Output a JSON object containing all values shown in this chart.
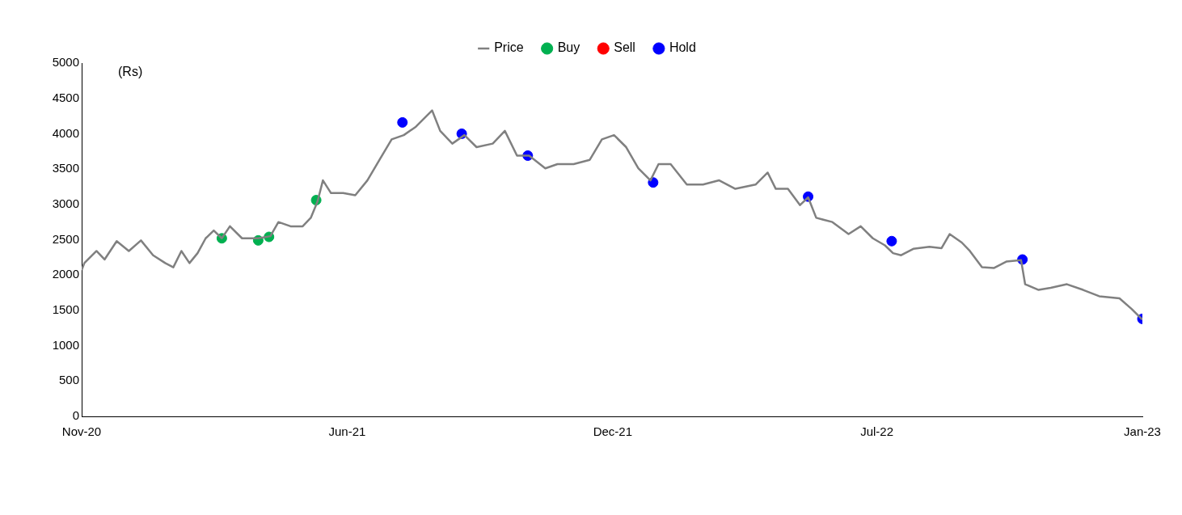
{
  "chart_data": {
    "type": "line",
    "ylabel": "(Rs)",
    "legend": "top",
    "xlim": [
      "2020-11-20",
      "2023-01-16"
    ],
    "xticks": [
      {
        "value": "2020-11-20",
        "label": "Nov-20"
      },
      {
        "value": "2021-06-05",
        "label": "Jun-21"
      },
      {
        "value": "2021-12-19",
        "label": "Dec-21"
      },
      {
        "value": "2022-07-03",
        "label": "Jul-22"
      },
      {
        "value": "2023-01-16",
        "label": "Jan-23"
      }
    ],
    "ylim": [
      0,
      5000
    ],
    "yticks": [
      0,
      500,
      1000,
      1500,
      2000,
      2500,
      3000,
      3500,
      4000,
      4500,
      5000
    ],
    "series": [
      {
        "name": "Price",
        "color": "#808080",
        "marker": "none",
        "x": [
          "2020-11-20",
          "2020-11-22",
          "2020-12-01",
          "2020-12-07",
          "2020-12-16",
          "2020-12-25",
          "2021-01-03",
          "2021-01-12",
          "2021-01-21",
          "2021-01-27",
          "2021-02-02",
          "2021-02-08",
          "2021-02-14",
          "2021-02-20",
          "2021-02-26",
          "2021-03-04",
          "2021-03-10",
          "2021-03-19",
          "2021-03-31",
          "2021-04-09",
          "2021-04-15",
          "2021-04-24",
          "2021-05-03",
          "2021-05-09",
          "2021-05-14",
          "2021-05-18",
          "2021-05-24",
          "2021-06-02",
          "2021-06-11",
          "2021-06-20",
          "2021-06-29",
          "2021-07-08",
          "2021-07-17",
          "2021-07-26",
          "2021-08-07",
          "2021-08-13",
          "2021-08-22",
          "2021-08-31",
          "2021-09-09",
          "2021-09-21",
          "2021-09-30",
          "2021-10-09",
          "2021-10-18",
          "2021-10-30",
          "2021-11-08",
          "2021-11-20",
          "2021-12-02",
          "2021-12-11",
          "2021-12-20",
          "2021-12-29",
          "2022-01-07",
          "2022-01-16",
          "2022-01-22",
          "2022-01-31",
          "2022-02-12",
          "2022-02-24",
          "2022-03-08",
          "2022-03-20",
          "2022-04-04",
          "2022-04-13",
          "2022-04-19",
          "2022-04-28",
          "2022-05-07",
          "2022-05-13",
          "2022-05-19",
          "2022-05-31",
          "2022-06-12",
          "2022-06-21",
          "2022-06-30",
          "2022-07-09",
          "2022-07-15",
          "2022-07-21",
          "2022-07-30",
          "2022-08-11",
          "2022-08-20",
          "2022-08-26",
          "2022-09-04",
          "2022-09-10",
          "2022-09-19",
          "2022-09-28",
          "2022-10-07",
          "2022-10-18",
          "2022-10-21",
          "2022-10-31",
          "2022-11-09",
          "2022-11-21",
          "2022-12-03",
          "2022-12-15",
          "2022-12-30",
          "2023-01-08",
          "2023-01-16"
        ],
        "values": [
          2070,
          2170,
          2340,
          2220,
          2480,
          2340,
          2490,
          2280,
          2170,
          2110,
          2340,
          2170,
          2310,
          2520,
          2630,
          2520,
          2690,
          2520,
          2520,
          2550,
          2750,
          2690,
          2690,
          2810,
          3040,
          3340,
          3160,
          3160,
          3130,
          3340,
          3630,
          3920,
          3980,
          4100,
          4330,
          4040,
          3860,
          3980,
          3810,
          3860,
          4040,
          3690,
          3690,
          3510,
          3570,
          3570,
          3630,
          3920,
          3980,
          3810,
          3510,
          3340,
          3570,
          3570,
          3280,
          3280,
          3340,
          3220,
          3280,
          3450,
          3220,
          3220,
          2990,
          3100,
          2810,
          2750,
          2580,
          2690,
          2520,
          2420,
          2310,
          2280,
          2370,
          2400,
          2380,
          2580,
          2460,
          2340,
          2110,
          2100,
          2190,
          2210,
          1870,
          1790,
          1820,
          1870,
          1790,
          1700,
          1670,
          1520,
          1370
        ]
      },
      {
        "name": "Buy",
        "type": "scatter",
        "color": "#00b050",
        "marker": "circle",
        "x": [
          "2021-03-04",
          "2021-03-31",
          "2021-04-08",
          "2021-05-13"
        ],
        "values": [
          2520,
          2490,
          2540,
          3060
        ]
      },
      {
        "name": "Sell",
        "type": "scatter",
        "color": "#ff0000",
        "marker": "circle"
      },
      {
        "name": "Hold",
        "type": "scatter",
        "color": "#0000ff",
        "marker": "circle",
        "x": [
          "2021-07-16",
          "2021-08-29",
          "2021-10-17",
          "2022-01-18",
          "2022-05-13",
          "2022-07-14",
          "2022-10-19",
          "2023-01-16"
        ],
        "values": [
          4160,
          4000,
          3690,
          3310,
          3110,
          2480,
          2220,
          1380
        ]
      }
    ]
  }
}
